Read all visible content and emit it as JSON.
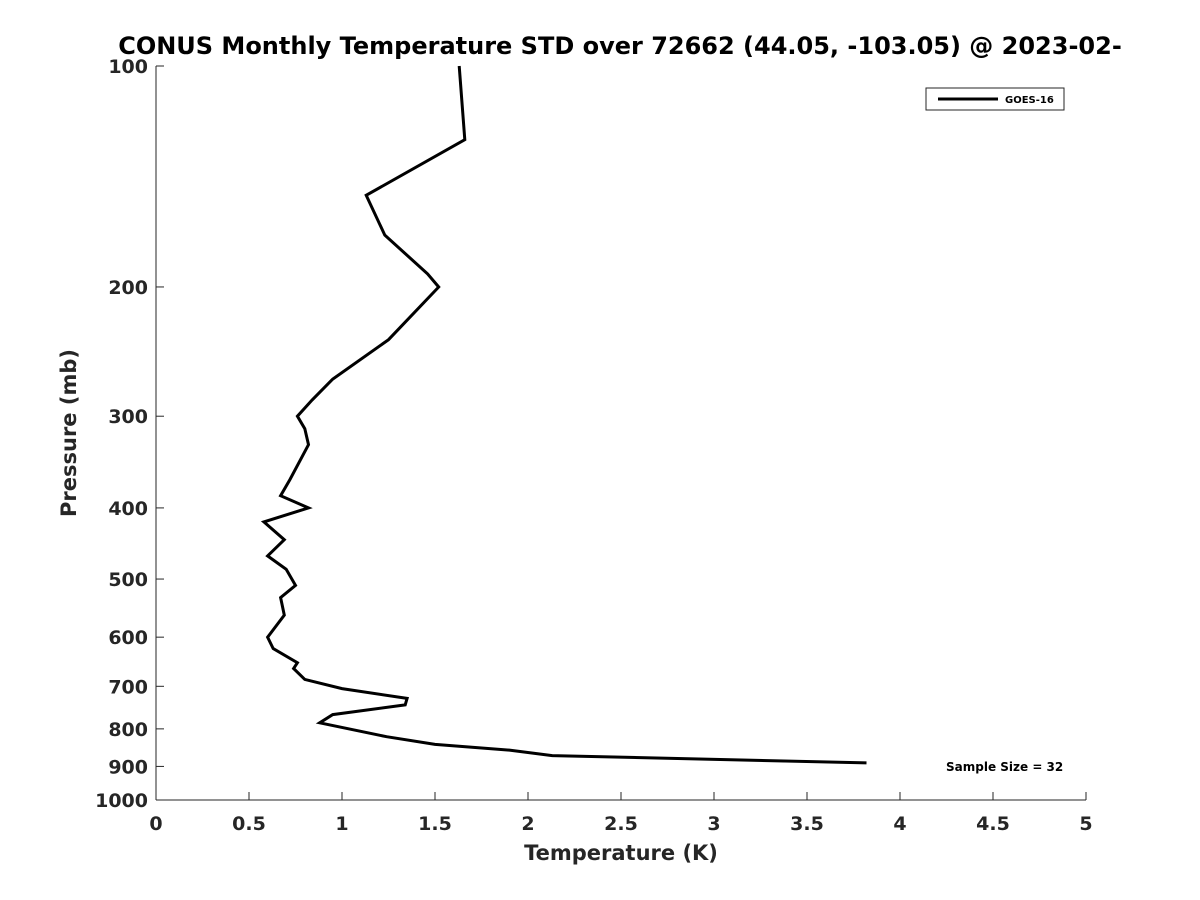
{
  "chart_data": {
    "type": "line",
    "title": "CONUS Monthly Temperature STD over 72662 (44.05, -103.05) @ 2023-02-",
    "xlabel": "Temperature (K)",
    "ylabel": "Pressure (mb)",
    "xlim": [
      0,
      5
    ],
    "ylim": [
      1000,
      100
    ],
    "yscale": "log",
    "y_reversed": true,
    "grid": false,
    "legend_position": "top-right",
    "x_ticks": [
      "0",
      "0.5",
      "1",
      "1.5",
      "2",
      "2.5",
      "3",
      "3.5",
      "4",
      "4.5",
      "5"
    ],
    "y_ticks": [
      "100",
      "200",
      "300",
      "400",
      "500",
      "600",
      "700",
      "800",
      "900",
      "1000"
    ],
    "series": [
      {
        "name": "GOES-16",
        "color": "#000000",
        "x": [
          1.63,
          1.66,
          1.13,
          1.23,
          1.46,
          1.52,
          1.25,
          0.95,
          0.84,
          0.76,
          0.8,
          0.82,
          0.72,
          0.67,
          0.82,
          0.58,
          0.69,
          0.6,
          0.7,
          0.75,
          0.67,
          0.69,
          0.6,
          0.63,
          0.76,
          0.74,
          0.8,
          1.0,
          1.35,
          1.34,
          0.95,
          0.88,
          1.24,
          1.5,
          1.9,
          2.13,
          3.82
        ],
        "y": [
          100,
          126,
          150,
          170,
          192,
          200,
          236,
          267,
          285,
          300,
          312,
          328,
          366,
          385,
          400,
          418,
          442,
          465,
          485,
          510,
          530,
          560,
          600,
          622,
          650,
          662,
          685,
          705,
          727,
          742,
          765,
          785,
          820,
          840,
          855,
          870,
          890
        ]
      }
    ],
    "annotations": [
      {
        "text": "Sample Size = 32"
      }
    ]
  }
}
